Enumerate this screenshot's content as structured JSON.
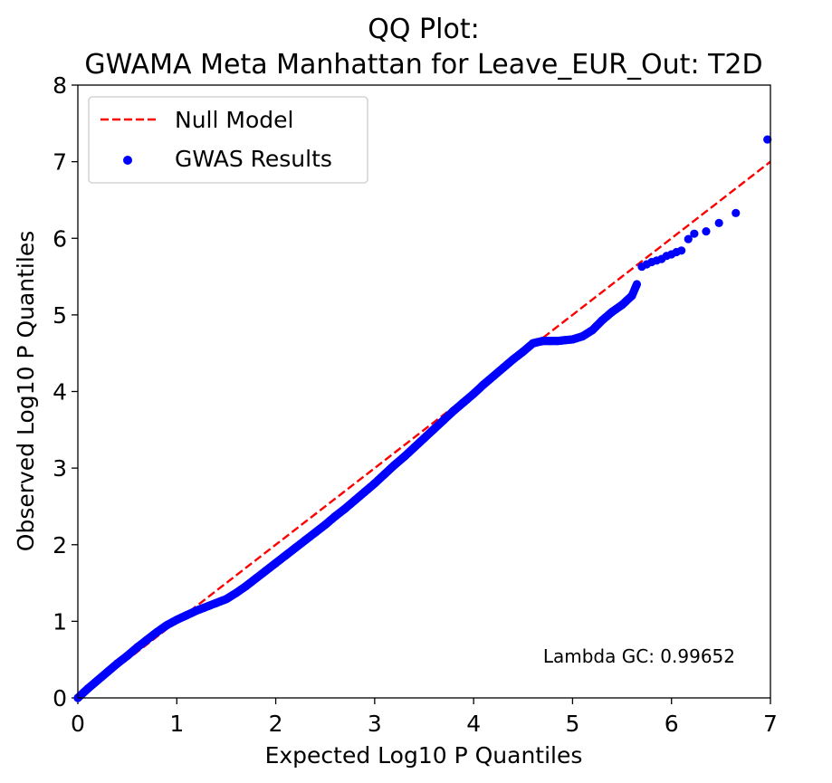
{
  "chart_data": {
    "type": "scatter",
    "title": [
      "QQ Plot:",
      "GWAMA Meta Manhattan for Leave_EUR_Out: T2D"
    ],
    "xlabel": "Expected Log10 P Quantiles",
    "ylabel": "Observed Log10 P Quantiles",
    "xlim": [
      0,
      7
    ],
    "ylim": [
      0,
      8
    ],
    "xticks": [
      "0",
      "1",
      "2",
      "3",
      "4",
      "5",
      "6",
      "7"
    ],
    "yticks": [
      "0",
      "1",
      "2",
      "3",
      "4",
      "5",
      "6",
      "7",
      "8"
    ],
    "grid": false,
    "legend_position": "top-left",
    "annotation": "Lambda GC: 0.99652",
    "colors": {
      "null_model": "#ff0000",
      "gwas": "#0000ff"
    },
    "series": [
      {
        "name": "Null Model",
        "kind": "line",
        "style": "dashed",
        "x": [
          0,
          7
        ],
        "y": [
          0,
          7
        ]
      },
      {
        "name": "GWAS Results",
        "kind": "scatter",
        "x": [
          0.0,
          0.1,
          0.2,
          0.3,
          0.4,
          0.5,
          0.6,
          0.7,
          0.8,
          0.9,
          1.0,
          1.1,
          1.2,
          1.3,
          1.4,
          1.5,
          1.6,
          1.7,
          1.8,
          1.9,
          2.0,
          2.1,
          2.2,
          2.3,
          2.4,
          2.5,
          2.6,
          2.7,
          2.8,
          2.9,
          3.0,
          3.1,
          3.2,
          3.3,
          3.4,
          3.5,
          3.6,
          3.7,
          3.8,
          3.9,
          4.0,
          4.1,
          4.2,
          4.3,
          4.4,
          4.5,
          4.6,
          4.7,
          4.78,
          4.85,
          4.92,
          5.0,
          5.1,
          5.2,
          5.3,
          5.4,
          5.5,
          5.6,
          5.65,
          5.7,
          5.75,
          5.8,
          5.85,
          5.9,
          5.95,
          6.0,
          6.05,
          6.1,
          6.17,
          6.23,
          6.35,
          6.48,
          6.65,
          6.97
        ],
        "y": [
          0.0,
          0.12,
          0.23,
          0.34,
          0.45,
          0.55,
          0.66,
          0.76,
          0.86,
          0.95,
          1.02,
          1.08,
          1.14,
          1.19,
          1.24,
          1.29,
          1.37,
          1.46,
          1.56,
          1.66,
          1.76,
          1.86,
          1.96,
          2.06,
          2.16,
          2.26,
          2.37,
          2.47,
          2.58,
          2.69,
          2.8,
          2.92,
          3.04,
          3.15,
          3.27,
          3.39,
          3.51,
          3.63,
          3.75,
          3.86,
          3.97,
          4.09,
          4.2,
          4.31,
          4.42,
          4.52,
          4.63,
          4.66,
          4.66,
          4.66,
          4.67,
          4.68,
          4.72,
          4.8,
          4.93,
          5.04,
          5.13,
          5.25,
          5.4,
          5.63,
          5.66,
          5.69,
          5.71,
          5.73,
          5.77,
          5.79,
          5.82,
          5.84,
          5.99,
          6.06,
          6.09,
          6.2,
          6.33,
          7.29
        ]
      }
    ]
  }
}
